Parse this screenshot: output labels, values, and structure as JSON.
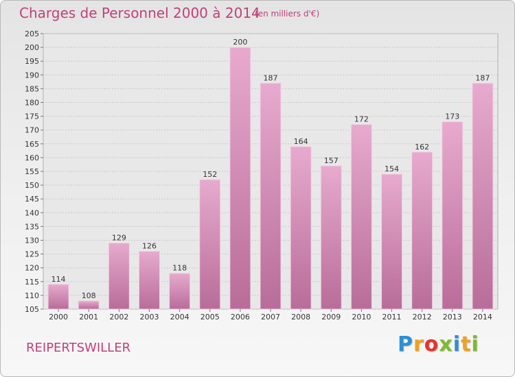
{
  "header": {
    "title": "Charges de Personnel 2000 à 2014",
    "subtitle": "(en milliers d'€)"
  },
  "footer": {
    "town": "REIPERTSWILLER",
    "logo_letters": [
      "P",
      "r",
      "o",
      "x",
      "i",
      "t",
      "i"
    ],
    "logo_colors": [
      "#2e8fd1",
      "#f0a11e",
      "#e8332b",
      "#7dbb2e",
      "#2e8fd1",
      "#f0a11e",
      "#7dbb2e"
    ]
  },
  "chart_data": {
    "type": "bar",
    "title": "Charges de Personnel 2000 à 2014",
    "subtitle": "(en milliers d'€)",
    "categories": [
      "2000",
      "2001",
      "2002",
      "2003",
      "2004",
      "2005",
      "2006",
      "2007",
      "2008",
      "2009",
      "2010",
      "2011",
      "2012",
      "2013",
      "2014"
    ],
    "values": [
      114,
      108,
      129,
      126,
      118,
      152,
      200,
      187,
      164,
      157,
      172,
      154,
      162,
      173,
      187
    ],
    "ylim": [
      105,
      205
    ],
    "yticks": [
      105,
      110,
      115,
      120,
      125,
      130,
      135,
      140,
      145,
      150,
      155,
      160,
      165,
      170,
      175,
      180,
      185,
      190,
      195,
      200,
      205
    ],
    "grid": true,
    "bar_color": "#d98bb6",
    "bar_color_dark": "#b86d99",
    "text_color": "#c0407a"
  }
}
